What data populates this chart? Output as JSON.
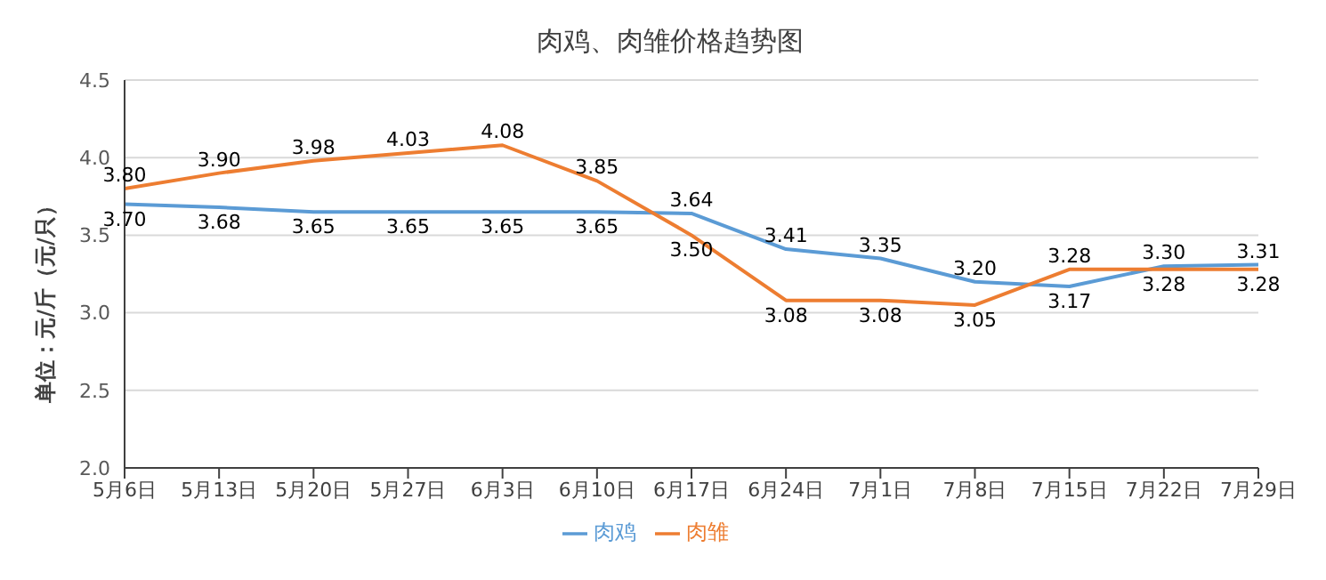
{
  "chart_data": {
    "type": "line",
    "title": "肉鸡、肉雏价格趋势图",
    "ylabel": "单位：元/斤（元/只）",
    "categories": [
      "5月6日",
      "5月13日",
      "5月20日",
      "5月27日",
      "6月3日",
      "6月10日",
      "6月17日",
      "6月24日",
      "7月1日",
      "7月8日",
      "7月15日",
      "7月22日",
      "7月29日"
    ],
    "series": [
      {
        "name": "肉鸡",
        "color": "#5b9bd5",
        "values": [
          3.7,
          3.68,
          3.65,
          3.65,
          3.65,
          3.65,
          3.64,
          3.41,
          3.35,
          3.2,
          3.17,
          3.3,
          3.31
        ],
        "value_labels": [
          "3.70",
          "3.68",
          "3.65",
          "3.65",
          "3.65",
          "3.65",
          "3.64",
          "3.41",
          "3.35",
          "3.20",
          "3.17",
          "3.30",
          "3.31"
        ]
      },
      {
        "name": "肉雏",
        "color": "#ed7d31",
        "values": [
          3.8,
          3.9,
          3.98,
          4.03,
          4.08,
          3.85,
          3.5,
          3.08,
          3.08,
          3.05,
          3.28,
          3.28,
          3.28
        ],
        "value_labels": [
          "3.80",
          "3.90",
          "3.98",
          "4.03",
          "4.08",
          "3.85",
          "3.50",
          "3.08",
          "3.08",
          "3.05",
          "3.28",
          "3.28",
          "3.28"
        ]
      }
    ],
    "ylim": [
      2.0,
      4.5
    ],
    "yticks": [
      {
        "value": 2.0,
        "label": "2.0"
      },
      {
        "value": 2.5,
        "label": "2.5"
      },
      {
        "value": 3.0,
        "label": "3.0"
      },
      {
        "value": 3.5,
        "label": "3.5"
      },
      {
        "value": 4.0,
        "label": "4.0"
      },
      {
        "value": 4.5,
        "label": "4.5"
      }
    ],
    "grid": "y",
    "legend": "bottom",
    "marker": "none",
    "line_style": "solid"
  }
}
